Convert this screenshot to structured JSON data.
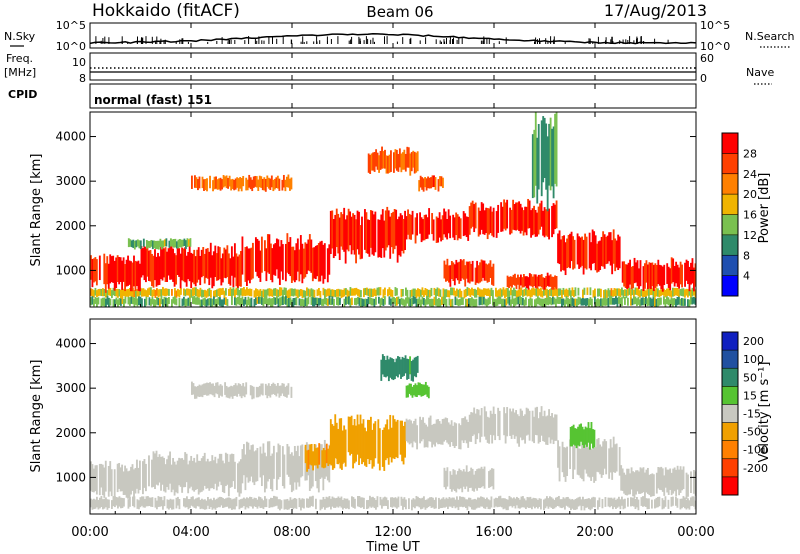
{
  "header": {
    "station": "Hokkaido (fitACF)",
    "beam": "Beam 06",
    "date": "17/Aug/2013"
  },
  "noise_panel": {
    "left_label": "N.Sky",
    "right_label": "N.Search",
    "ticks_left": [
      "10^5",
      "10^0"
    ],
    "ticks_right": [
      "10^5",
      "10^0"
    ]
  },
  "freq_panel": {
    "left_label_1": "Freq.",
    "left_label_2": "[MHz]",
    "right_label": "Nave",
    "ticks_left": [
      "10",
      "8"
    ],
    "ticks_right": [
      "60",
      "0"
    ]
  },
  "cpid_panel": {
    "label": "CPID",
    "mode": "normal (fast) 151"
  },
  "x_axis": {
    "ticks": [
      "00:00",
      "04:00",
      "08:00",
      "12:00",
      "16:00",
      "20:00",
      "00:00"
    ],
    "label": "Time UT"
  },
  "range_axis": {
    "label": "Slant Range [km]",
    "ticks": [
      "1000",
      "2000",
      "3000",
      "4000"
    ]
  },
  "power_scale": {
    "label": "Power [dB]",
    "ticks": [
      "4",
      "8",
      "12",
      "16",
      "20",
      "24",
      "28"
    ],
    "colors": [
      "#0000ff",
      "#1f4fb0",
      "#2f8a6a",
      "#7ac050",
      "#f0b400",
      "#ff8000",
      "#ff4000",
      "#ff0000"
    ]
  },
  "velocity_scale": {
    "label": "Velocity [m s⁻¹]",
    "ticks": [
      "200",
      "100",
      "50",
      "15",
      "-15",
      "-50",
      "-100",
      "-200"
    ],
    "colors": [
      "#1020c0",
      "#2050a0",
      "#2f8a6a",
      "#56c432",
      "#c8c8c0",
      "#f0a000",
      "#ff8000",
      "#ff4000",
      "#ff0000"
    ]
  },
  "chart_data": [
    {
      "type": "heatmap",
      "title": "Power",
      "xlabel": "Time UT",
      "ylabel": "Slant Range [km]",
      "xlim": [
        0,
        24
      ],
      "ylim": [
        180,
        4550
      ],
      "colorbar": {
        "label": "Power [dB]",
        "range": [
          0,
          32
        ]
      },
      "regions": [
        {
          "t_start": 0.0,
          "t_end": 24.0,
          "range_start": 400,
          "range_end": 600,
          "value": 16
        },
        {
          "t_start": 0.0,
          "t_end": 24.0,
          "range_start": 200,
          "range_end": 400,
          "value": 12
        },
        {
          "t_start": 0.0,
          "t_end": 2.0,
          "range_start": 600,
          "range_end": 1300,
          "value": 28
        },
        {
          "t_start": 2.0,
          "t_end": 6.0,
          "range_start": 700,
          "range_end": 1500,
          "value": 28
        },
        {
          "t_start": 6.0,
          "t_end": 9.5,
          "range_start": 800,
          "range_end": 1700,
          "value": 28
        },
        {
          "t_start": 9.5,
          "t_end": 12.5,
          "range_start": 1300,
          "range_end": 2300,
          "value": 28
        },
        {
          "t_start": 12.5,
          "t_end": 15.0,
          "range_start": 1700,
          "range_end": 2300,
          "value": 28
        },
        {
          "t_start": 15.0,
          "t_end": 18.5,
          "range_start": 1800,
          "range_end": 2500,
          "value": 28
        },
        {
          "t_start": 18.5,
          "t_end": 21.0,
          "range_start": 1000,
          "range_end": 1800,
          "value": 28
        },
        {
          "t_start": 21.0,
          "t_end": 24.0,
          "range_start": 600,
          "range_end": 1200,
          "value": 28
        },
        {
          "t_start": 14.0,
          "t_end": 16.0,
          "range_start": 700,
          "range_end": 1200,
          "value": 26
        },
        {
          "t_start": 16.5,
          "t_end": 18.5,
          "range_start": 600,
          "range_end": 900,
          "value": 26
        },
        {
          "t_start": 11.0,
          "t_end": 13.0,
          "range_start": 3200,
          "range_end": 3700,
          "value": 24
        },
        {
          "t_start": 13.0,
          "t_end": 14.0,
          "range_start": 2800,
          "range_end": 3100,
          "value": 24
        },
        {
          "t_start": 4.0,
          "t_end": 8.0,
          "range_start": 2800,
          "range_end": 3100,
          "value": 22
        },
        {
          "t_start": 1.5,
          "t_end": 4.0,
          "range_start": 1500,
          "range_end": 1700,
          "value": 12
        },
        {
          "t_start": 17.5,
          "t_end": 18.5,
          "range_start": 2600,
          "range_end": 4300,
          "value": 10
        }
      ]
    },
    {
      "type": "heatmap",
      "title": "Velocity",
      "xlabel": "Time UT",
      "ylabel": "Slant Range [km]",
      "xlim": [
        0,
        24
      ],
      "ylim": [
        180,
        4550
      ],
      "colorbar": {
        "label": "Velocity [m s⁻¹]",
        "range": [
          -200,
          200
        ]
      },
      "regions": [
        {
          "t_start": 0.0,
          "t_end": 2.0,
          "range_start": 600,
          "range_end": 1300,
          "value": 0
        },
        {
          "t_start": 2.0,
          "t_end": 6.0,
          "range_start": 700,
          "range_end": 1500,
          "value": 0
        },
        {
          "t_start": 6.0,
          "t_end": 9.5,
          "range_start": 800,
          "range_end": 1700,
          "value": 0
        },
        {
          "t_start": 9.5,
          "t_end": 12.5,
          "range_start": 1300,
          "range_end": 2300,
          "value": -30
        },
        {
          "t_start": 12.5,
          "t_end": 15.0,
          "range_start": 1700,
          "range_end": 2300,
          "value": 0
        },
        {
          "t_start": 15.0,
          "t_end": 18.5,
          "range_start": 1800,
          "range_end": 2500,
          "value": 0
        },
        {
          "t_start": 18.5,
          "t_end": 21.0,
          "range_start": 1000,
          "range_end": 1800,
          "value": 0
        },
        {
          "t_start": 21.0,
          "t_end": 24.0,
          "range_start": 600,
          "range_end": 1200,
          "value": 0
        },
        {
          "t_start": 14.0,
          "t_end": 16.0,
          "range_start": 700,
          "range_end": 1200,
          "value": 0
        },
        {
          "t_start": 8.5,
          "t_end": 10.0,
          "range_start": 1200,
          "range_end": 1700,
          "value": -40
        },
        {
          "t_start": 11.5,
          "t_end": 13.0,
          "range_start": 3200,
          "range_end": 3700,
          "value": 60
        },
        {
          "t_start": 12.5,
          "t_end": 13.5,
          "range_start": 2800,
          "range_end": 3100,
          "value": 30
        },
        {
          "t_start": 19.0,
          "t_end": 20.0,
          "range_start": 1700,
          "range_end": 2200,
          "value": 30
        },
        {
          "t_start": 4.0,
          "t_end": 8.0,
          "range_start": 2800,
          "range_end": 3100,
          "value": 0
        },
        {
          "t_start": 0.0,
          "t_end": 24.0,
          "range_start": 300,
          "range_end": 550,
          "value": 0
        }
      ]
    }
  ]
}
